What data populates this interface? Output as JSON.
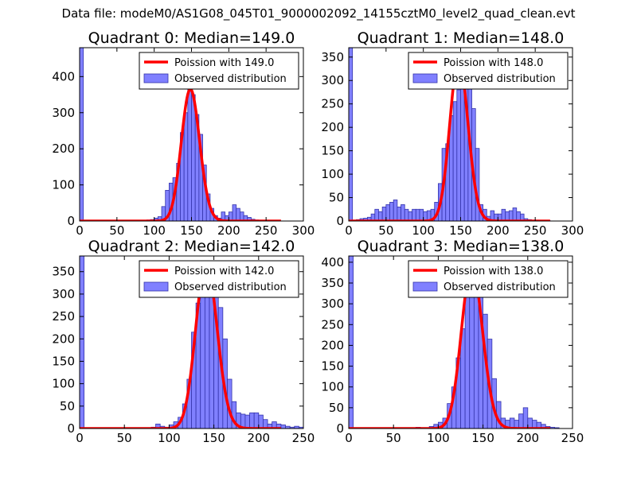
{
  "suptitle": "Data file: modeM0/AS1G08_045T01_9000002092_14155cztM0_level2_quad_clean.evt",
  "colors": {
    "poisson": "#ff0000",
    "hist_fill": "#8080ff",
    "hist_edge": "#3333aa",
    "axes": "#000000"
  },
  "chart_data": [
    {
      "type": "bar",
      "title": "Quadrant 0: Median=149.0",
      "median": 149.0,
      "xlim": [
        0,
        300
      ],
      "ylim": [
        0,
        480
      ],
      "xticks": [
        0,
        50,
        100,
        150,
        200,
        250,
        300
      ],
      "yticks": [
        0,
        100,
        200,
        300,
        400
      ],
      "bin_width": 5,
      "first_bar": {
        "x": 0,
        "value": 480
      },
      "bins_x": [
        85,
        90,
        95,
        100,
        105,
        110,
        115,
        120,
        125,
        130,
        135,
        140,
        145,
        150,
        155,
        160,
        165,
        170,
        175,
        180,
        185,
        190,
        195,
        200,
        205,
        210,
        215,
        220,
        225,
        230,
        235,
        240,
        245,
        250,
        255
      ],
      "bins_y": [
        2,
        3,
        4,
        8,
        12,
        40,
        85,
        105,
        120,
        160,
        245,
        300,
        365,
        350,
        295,
        240,
        155,
        75,
        35,
        15,
        8,
        25,
        15,
        25,
        45,
        35,
        25,
        15,
        10,
        5,
        3,
        2,
        2,
        1,
        1
      ],
      "legend": {
        "poisson": "Poission with 149.0",
        "observed": "Observed distribution"
      }
    },
    {
      "type": "bar",
      "title": "Quadrant 1: Median=148.0",
      "median": 148.0,
      "xlim": [
        0,
        300
      ],
      "ylim": [
        0,
        370
      ],
      "xticks": [
        0,
        50,
        100,
        150,
        200,
        250,
        300
      ],
      "yticks": [
        0,
        50,
        100,
        150,
        200,
        250,
        300,
        350
      ],
      "bin_width": 5,
      "first_bar": {
        "x": 0,
        "value": 370
      },
      "bins_x": [
        5,
        10,
        15,
        20,
        25,
        30,
        35,
        40,
        45,
        50,
        55,
        60,
        65,
        70,
        75,
        80,
        85,
        90,
        95,
        100,
        105,
        110,
        115,
        120,
        125,
        130,
        135,
        140,
        145,
        150,
        155,
        160,
        165,
        170,
        175,
        180,
        185,
        190,
        195,
        200,
        205,
        210,
        215,
        220,
        225,
        230,
        235,
        240,
        245,
        250,
        255,
        260,
        265
      ],
      "bins_y": [
        2,
        3,
        5,
        6,
        8,
        15,
        25,
        20,
        30,
        35,
        40,
        45,
        30,
        35,
        25,
        20,
        25,
        25,
        25,
        20,
        22,
        25,
        40,
        80,
        155,
        165,
        225,
        255,
        280,
        330,
        345,
        290,
        240,
        155,
        35,
        25,
        10,
        22,
        15,
        15,
        25,
        20,
        22,
        28,
        20,
        15,
        5,
        3,
        2,
        2,
        1,
        1,
        1
      ],
      "legend": {
        "poisson": "Poission with 148.0",
        "observed": "Observed distribution"
      }
    },
    {
      "type": "bar",
      "title": "Quadrant 2: Median=142.0",
      "median": 142.0,
      "xlim": [
        0,
        250
      ],
      "ylim": [
        0,
        385
      ],
      "xticks": [
        0,
        50,
        100,
        150,
        200,
        250
      ],
      "yticks": [
        0,
        50,
        100,
        150,
        200,
        250,
        300,
        350
      ],
      "bin_width": 5,
      "first_bar": {
        "x": 0,
        "value": 385
      },
      "bins_x": [
        80,
        85,
        90,
        95,
        100,
        105,
        110,
        115,
        120,
        125,
        130,
        135,
        140,
        145,
        150,
        155,
        160,
        165,
        170,
        175,
        180,
        185,
        190,
        195,
        200,
        205,
        210,
        215,
        220,
        225,
        230,
        235,
        240,
        245
      ],
      "bins_y": [
        3,
        10,
        5,
        3,
        8,
        15,
        25,
        55,
        110,
        215,
        280,
        305,
        360,
        370,
        295,
        270,
        200,
        110,
        60,
        35,
        32,
        30,
        35,
        35,
        30,
        20,
        10,
        15,
        10,
        8,
        5,
        3,
        5,
        3
      ],
      "legend": {
        "poisson": "Poission with 142.0",
        "observed": "Observed distribution"
      }
    },
    {
      "type": "bar",
      "title": "Quadrant 3: Median=138.0",
      "median": 138.0,
      "xlim": [
        0,
        250
      ],
      "ylim": [
        0,
        415
      ],
      "xticks": [
        0,
        50,
        100,
        150,
        200,
        250
      ],
      "yticks": [
        0,
        50,
        100,
        150,
        200,
        250,
        300,
        350,
        400
      ],
      "bin_width": 5,
      "first_bar": {
        "x": 0,
        "value": 415
      },
      "bins_x": [
        70,
        75,
        80,
        85,
        90,
        95,
        100,
        105,
        110,
        115,
        120,
        125,
        130,
        135,
        140,
        145,
        150,
        155,
        160,
        165,
        170,
        175,
        180,
        185,
        190,
        195,
        200,
        205,
        210,
        215,
        220,
        225,
        230
      ],
      "bins_y": [
        2,
        3,
        2,
        2,
        5,
        10,
        15,
        25,
        60,
        100,
        170,
        240,
        325,
        380,
        390,
        325,
        275,
        215,
        120,
        65,
        25,
        20,
        25,
        20,
        35,
        50,
        25,
        20,
        15,
        10,
        5,
        3,
        2
      ],
      "legend": {
        "poisson": "Poission with 138.0",
        "observed": "Observed distribution"
      }
    }
  ]
}
